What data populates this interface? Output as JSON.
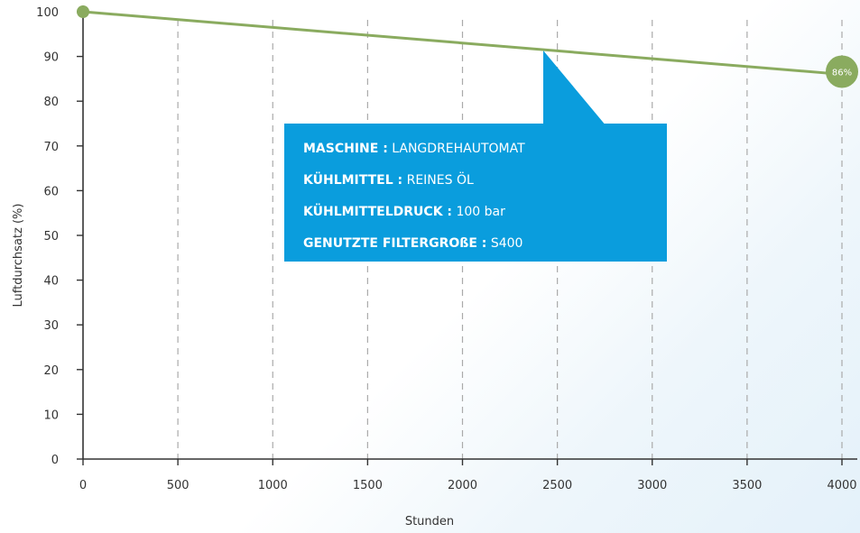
{
  "chart_data": {
    "type": "line",
    "xlabel": "Stunden",
    "ylabel": "Luftdurchsatz (%)",
    "xlim": [
      0,
      4000
    ],
    "ylim": [
      0,
      100
    ],
    "x_ticks": [
      "0",
      "500",
      "1000",
      "1500",
      "2000",
      "2500",
      "3000",
      "3500",
      "4000"
    ],
    "y_ticks": [
      "0",
      "10",
      "20",
      "30",
      "40",
      "50",
      "60",
      "70",
      "80",
      "90",
      "100"
    ],
    "grid": "vertical dashed",
    "series": [
      {
        "x": [
          0,
          4000
        ],
        "y": [
          100,
          86
        ],
        "color": "#8aab5f"
      }
    ],
    "end_marker_label": "86%",
    "callout": [
      {
        "key": "MASCHINE :",
        "value": "LANGDREHAUTOMAT"
      },
      {
        "key": "KÜHLMITTEL :",
        "value": "REINES ÖL"
      },
      {
        "key": "KÜHLMITTELDRUCK :",
        "value": "100 bar"
      },
      {
        "key": "GENUTZTE FILTERGROßE :",
        "value": "S400"
      }
    ]
  },
  "colors": {
    "line": "#8aab5f",
    "callout": "#0a9ddd",
    "grid": "#aaaaaa",
    "axis": "#333333"
  }
}
